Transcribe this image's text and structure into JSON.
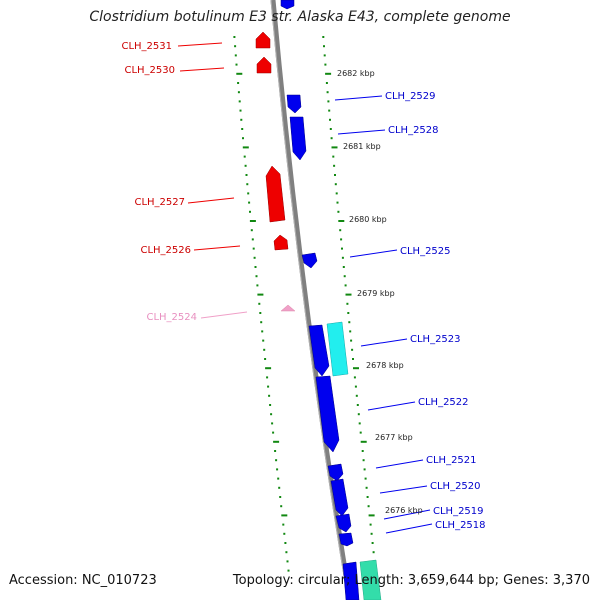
{
  "title": "Clostridium botulinum E3 str. Alaska E43, complete genome",
  "footer": {
    "accession": "Accession: NC_010723",
    "topology": "Topology: circular; Length: 3,659,644 bp; Genes: 3,370"
  },
  "colors": {
    "backbone": "#808080",
    "tick": "#118811",
    "reverse_gene": "#ee0000",
    "forward_gene": "#0000ee",
    "faded_gene": "#f0a0c8",
    "cyan_gene": "#22eeee",
    "teal_gene": "#33ddaa"
  },
  "kbp_labels": [
    "2682 kbp",
    "2681 kbp",
    "2680 kbp",
    "2679 kbp",
    "2678 kbp",
    "2677 kbp",
    "2676 kbp"
  ],
  "genes": [
    {
      "name": "CLH_2531",
      "strand": "reverse"
    },
    {
      "name": "CLH_2530",
      "strand": "reverse"
    },
    {
      "name": "CLH_2529",
      "strand": "forward"
    },
    {
      "name": "CLH_2528",
      "strand": "forward"
    },
    {
      "name": "CLH_2527",
      "strand": "reverse"
    },
    {
      "name": "CLH_2526",
      "strand": "reverse"
    },
    {
      "name": "CLH_2525",
      "strand": "forward"
    },
    {
      "name": "CLH_2524",
      "strand": "reverse",
      "faded": true
    },
    {
      "name": "CLH_2523",
      "strand": "forward"
    },
    {
      "name": "CLH_2522",
      "strand": "forward"
    },
    {
      "name": "CLH_2521",
      "strand": "forward"
    },
    {
      "name": "CLH_2520",
      "strand": "forward"
    },
    {
      "name": "CLH_2519",
      "strand": "forward"
    },
    {
      "name": "CLH_2518",
      "strand": "forward"
    }
  ]
}
